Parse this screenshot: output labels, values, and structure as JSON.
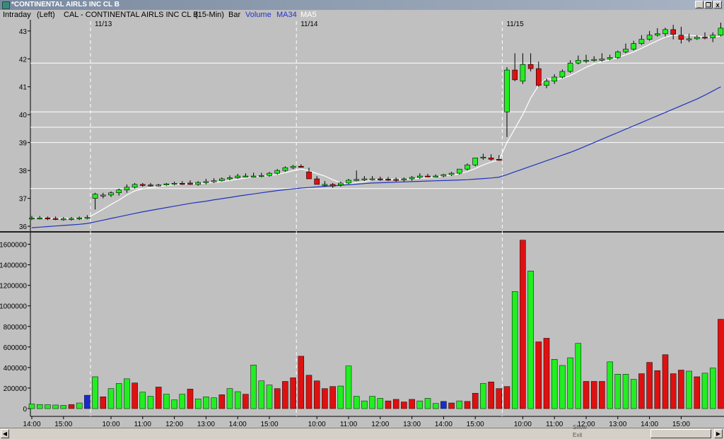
{
  "window": {
    "title": "*CONTINENTAL AIRLS INC CL B",
    "minimize_label": "_",
    "restore_label": "❐",
    "close_label": "x"
  },
  "infobar": {
    "mode": "Intraday",
    "axis_side": "(Left)",
    "symbol_description": "CAL - CONTINENTAL AIRLS INC CL B",
    "interval": "(15-Min)",
    "chart_style": "Bar",
    "volume_label": "Volume",
    "ma34_label": "MA34",
    "ma5_label": "MA5"
  },
  "colors": {
    "background": "#c0c0c0",
    "up_candle": "#22ee22",
    "down_candle": "#e01010",
    "ma34": "#2233bb",
    "ma5": "#ffffff",
    "volume_ma34_text": "#2233cc"
  },
  "menu_hint": {
    "show": "Show",
    "exit": "Exit"
  },
  "chart_data": {
    "type": "candlestick",
    "price_axis": {
      "ylim": [
        35.85,
        43.35
      ],
      "ticks": [
        36,
        37,
        38,
        39,
        40,
        41,
        42,
        43
      ]
    },
    "volume_axis": {
      "ylim": [
        0,
        1700000
      ],
      "ticks": [
        0,
        200000,
        400000,
        600000,
        800000,
        1000000,
        1200000,
        1400000,
        1600000
      ],
      "tick_labels": [
        "0",
        "200000",
        "400000",
        "600000",
        "800000",
        "1000000",
        "1200000",
        "1400000",
        "1600000"
      ]
    },
    "horizontal_lines": [
      41.85,
      40.1,
      39.55,
      39.0,
      37.35
    ],
    "date_labels": [
      {
        "label": "11/13",
        "bar": 8
      },
      {
        "label": "11/14",
        "bar": 34
      },
      {
        "label": "11/15",
        "bar": 60
      }
    ],
    "time_ticks": [
      {
        "label": "14:00",
        "bar": 0
      },
      {
        "label": "15:00",
        "bar": 4
      },
      {
        "label": "10:00",
        "bar": 10
      },
      {
        "label": "11:00",
        "bar": 14
      },
      {
        "label": "12:00",
        "bar": 18
      },
      {
        "label": "13:00",
        "bar": 22
      },
      {
        "label": "14:00",
        "bar": 26
      },
      {
        "label": "15:00",
        "bar": 30
      },
      {
        "label": "10:00",
        "bar": 36
      },
      {
        "label": "11:00",
        "bar": 40
      },
      {
        "label": "12:00",
        "bar": 44
      },
      {
        "label": "13:00",
        "bar": 48
      },
      {
        "label": "14:00",
        "bar": 52
      },
      {
        "label": "15:00",
        "bar": 56
      },
      {
        "label": "10:00",
        "bar": 62
      },
      {
        "label": "11:00",
        "bar": 66
      },
      {
        "label": "12:00",
        "bar": 70
      },
      {
        "label": "13:00",
        "bar": 74
      },
      {
        "label": "14:00",
        "bar": 78
      },
      {
        "label": "15:00",
        "bar": 82
      }
    ],
    "open": [
      36.28,
      36.3,
      36.3,
      36.28,
      36.27,
      36.27,
      36.28,
      36.3,
      37.0,
      37.1,
      37.12,
      37.2,
      37.3,
      37.4,
      37.5,
      37.48,
      37.46,
      37.48,
      37.52,
      37.54,
      37.55,
      37.5,
      37.57,
      37.6,
      37.63,
      37.7,
      37.74,
      37.8,
      37.8,
      37.8,
      37.82,
      37.9,
      38.0,
      38.1,
      38.15,
      37.95,
      37.7,
      37.5,
      37.5,
      37.48,
      37.55,
      37.65,
      37.68,
      37.7,
      37.7,
      37.69,
      37.68,
      37.66,
      37.7,
      37.75,
      37.8,
      37.8,
      37.8,
      37.85,
      37.9,
      38.05,
      38.2,
      38.45,
      38.45,
      38.4,
      40.1,
      41.6,
      41.2,
      41.8,
      41.65,
      41.05,
      41.2,
      41.35,
      41.55,
      41.85,
      41.95,
      41.95,
      41.95,
      42.0,
      42.05,
      42.25,
      42.35,
      42.55,
      42.7,
      42.85,
      42.9,
      43.05,
      42.85,
      42.7,
      42.72,
      42.78,
      42.75,
      42.85
    ],
    "high": [
      36.37,
      36.37,
      36.35,
      36.35,
      36.33,
      36.33,
      36.35,
      36.4,
      37.2,
      37.2,
      37.25,
      37.35,
      37.5,
      37.55,
      37.55,
      37.55,
      37.52,
      37.55,
      37.6,
      37.62,
      37.65,
      37.62,
      37.7,
      37.72,
      37.75,
      37.82,
      37.88,
      37.9,
      37.92,
      37.92,
      37.95,
      38.05,
      38.15,
      38.2,
      38.22,
      38.1,
      37.8,
      37.62,
      37.55,
      37.6,
      37.7,
      38.0,
      37.8,
      37.8,
      37.78,
      37.77,
      37.75,
      37.75,
      37.8,
      37.9,
      37.88,
      37.86,
      37.88,
      37.95,
      38.05,
      38.25,
      38.45,
      38.6,
      38.58,
      38.55,
      41.7,
      42.2,
      42.2,
      42.2,
      41.9,
      41.3,
      41.45,
      41.62,
      41.95,
      42.12,
      42.15,
      42.1,
      42.2,
      42.15,
      42.3,
      42.55,
      42.65,
      42.85,
      43.0,
      43.1,
      43.12,
      43.22,
      43.15,
      42.9,
      42.85,
      42.95,
      42.95,
      43.3
    ],
    "low": [
      36.22,
      36.24,
      36.22,
      36.22,
      36.2,
      36.2,
      36.22,
      36.25,
      36.6,
      37.0,
      37.05,
      37.1,
      37.2,
      37.35,
      37.42,
      37.42,
      37.42,
      37.45,
      37.47,
      37.48,
      37.48,
      37.45,
      37.5,
      37.55,
      37.6,
      37.65,
      37.7,
      37.75,
      37.75,
      37.75,
      37.78,
      37.85,
      37.95,
      38.05,
      38.1,
      37.7,
      37.5,
      37.42,
      37.38,
      37.42,
      37.5,
      37.62,
      37.62,
      37.64,
      37.63,
      37.62,
      37.6,
      37.6,
      37.63,
      37.7,
      37.75,
      37.75,
      37.76,
      37.8,
      37.85,
      38.0,
      38.15,
      38.38,
      38.35,
      38.35,
      39.2,
      41.2,
      41.1,
      41.55,
      41.0,
      40.95,
      41.1,
      41.3,
      41.5,
      41.8,
      41.85,
      41.9,
      41.9,
      41.95,
      42.0,
      42.2,
      42.3,
      42.5,
      42.65,
      42.8,
      42.8,
      42.7,
      42.55,
      42.6,
      42.68,
      42.7,
      42.6,
      42.8
    ],
    "close": [
      36.3,
      36.3,
      36.28,
      36.27,
      36.27,
      36.28,
      36.3,
      36.32,
      37.15,
      37.12,
      37.2,
      37.3,
      37.4,
      37.5,
      37.48,
      37.46,
      37.48,
      37.52,
      37.54,
      37.52,
      37.5,
      37.57,
      37.6,
      37.63,
      37.7,
      37.74,
      37.8,
      37.8,
      37.8,
      37.82,
      37.9,
      38.0,
      38.1,
      38.15,
      38.12,
      37.7,
      37.5,
      37.5,
      37.44,
      37.55,
      37.65,
      37.68,
      37.7,
      37.7,
      37.69,
      37.68,
      37.66,
      37.7,
      37.75,
      37.8,
      37.78,
      37.8,
      37.85,
      37.9,
      38.05,
      38.2,
      38.45,
      38.48,
      38.4,
      38.38,
      41.6,
      41.25,
      41.8,
      41.65,
      41.05,
      41.2,
      41.35,
      41.55,
      41.85,
      41.95,
      41.95,
      41.98,
      42.0,
      42.05,
      42.25,
      42.35,
      42.55,
      42.7,
      42.85,
      42.9,
      43.05,
      42.88,
      42.7,
      42.72,
      42.78,
      42.75,
      42.85,
      43.1
    ],
    "volume": [
      45000,
      40000,
      38000,
      35000,
      32000,
      40000,
      55000,
      130000,
      310000,
      115000,
      195000,
      245000,
      290000,
      250000,
      160000,
      120000,
      210000,
      140000,
      85000,
      140000,
      190000,
      95000,
      115000,
      105000,
      135000,
      195000,
      165000,
      140000,
      425000,
      270000,
      230000,
      195000,
      265000,
      300000,
      510000,
      325000,
      270000,
      195000,
      215000,
      220000,
      415000,
      120000,
      75000,
      120000,
      100000,
      75000,
      90000,
      65000,
      90000,
      75000,
      100000,
      50000,
      70000,
      55000,
      75000,
      70000,
      150000,
      245000,
      260000,
      195000,
      215000,
      1140000,
      1640000,
      1340000,
      650000,
      685000,
      480000,
      420000,
      495000,
      635000,
      265000,
      265000,
      265000,
      455000,
      335000,
      335000,
      285000,
      340000,
      450000,
      370000,
      525000,
      340000,
      375000,
      365000,
      310000,
      345000,
      395000,
      870000
    ],
    "volume_down_color_bars": [
      5,
      7,
      9,
      13,
      16,
      20,
      24,
      27,
      31,
      32,
      33,
      34,
      35,
      36,
      37,
      38,
      45,
      46,
      47,
      48,
      52,
      53,
      55,
      56,
      58,
      59,
      60,
      62,
      64,
      65,
      70,
      71,
      72,
      77,
      78,
      79,
      80,
      81,
      82,
      84,
      87
    ],
    "volume_blue_bars": [
      7,
      52
    ],
    "ma34": [
      35.95,
      35.97,
      35.99,
      36.01,
      36.03,
      36.05,
      36.07,
      36.1,
      36.16,
      36.22,
      36.28,
      36.34,
      36.4,
      36.46,
      36.52,
      36.57,
      36.62,
      36.67,
      36.72,
      36.77,
      36.82,
      36.86,
      36.9,
      36.95,
      36.99,
      37.03,
      37.08,
      37.12,
      37.16,
      37.2,
      37.24,
      37.28,
      37.31,
      37.34,
      37.37,
      37.39,
      37.41,
      37.43,
      37.45,
      37.47,
      37.49,
      37.51,
      37.53,
      37.55,
      37.56,
      37.57,
      37.58,
      37.59,
      37.6,
      37.61,
      37.62,
      37.63,
      37.64,
      37.65,
      37.66,
      37.67,
      37.69,
      37.71,
      37.73,
      37.76,
      37.85,
      37.95,
      38.05,
      38.15,
      38.25,
      38.35,
      38.45,
      38.55,
      38.65,
      38.76,
      38.88,
      39.0,
      39.12,
      39.24,
      39.36,
      39.48,
      39.6,
      39.72,
      39.84,
      39.96,
      40.08,
      40.2,
      40.32,
      40.44,
      40.56,
      40.7,
      40.85,
      41.0
    ],
    "ma5": [
      36.3,
      36.3,
      36.29,
      36.28,
      36.28,
      36.28,
      36.28,
      36.29,
      36.45,
      36.61,
      36.78,
      36.94,
      37.12,
      37.27,
      37.34,
      37.39,
      37.42,
      37.46,
      37.49,
      37.51,
      37.52,
      37.53,
      37.55,
      37.57,
      37.6,
      37.64,
      37.69,
      37.73,
      37.77,
      37.79,
      37.82,
      37.86,
      37.92,
      37.99,
      38.05,
      37.99,
      37.89,
      37.8,
      37.67,
      37.56,
      37.53,
      37.56,
      37.6,
      37.66,
      37.68,
      37.69,
      37.69,
      37.69,
      37.7,
      37.72,
      37.74,
      37.76,
      37.8,
      37.83,
      37.88,
      37.96,
      38.07,
      38.2,
      38.3,
      38.37,
      39.0,
      39.5,
      40.0,
      40.6,
      41.05,
      41.3,
      41.25,
      41.3,
      41.4,
      41.55,
      41.7,
      41.82,
      41.9,
      41.96,
      42.05,
      42.15,
      42.25,
      42.38,
      42.52,
      42.65,
      42.78,
      42.85,
      42.85,
      42.85,
      42.82,
      42.78,
      42.78,
      42.82
    ]
  }
}
